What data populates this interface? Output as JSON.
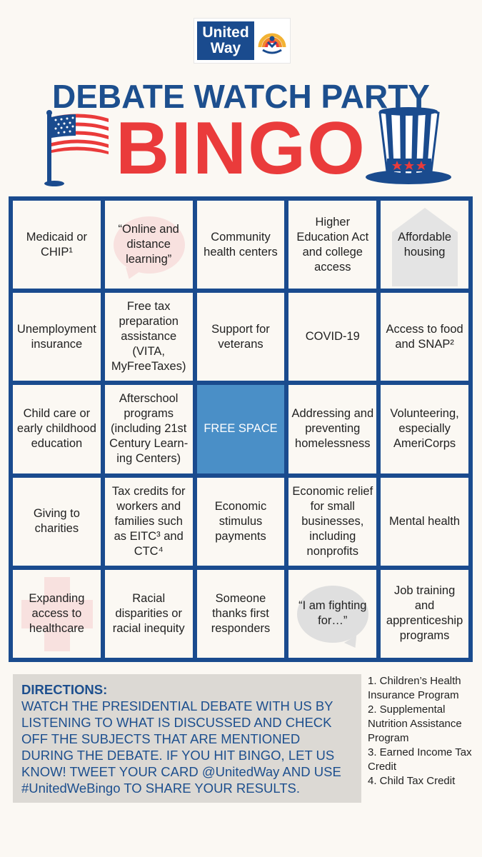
{
  "logo": {
    "line1": "United",
    "line2": "Way"
  },
  "header": {
    "title": "DEBATE WATCH PARTY",
    "bingo": "BINGO"
  },
  "colors": {
    "navy": "#1a4b8e",
    "red": "#ea3b3b",
    "free": "#4a8fc7",
    "background": "#fbf8f3"
  },
  "icons": [
    "us-flag-icon",
    "uncle-sam-hat-icon",
    "speech-bubble-icon",
    "house-icon",
    "red-cross-icon"
  ],
  "cells": [
    "Medicaid or CHIP¹",
    "“Online and distance learning”",
    "Community health centers",
    "Higher Education Act and college access",
    "Affordable housing",
    "Unemployment insurance",
    "Free tax preparation assistance (VITA, MyFreeTaxes)",
    "Support for veterans",
    "COVID-19",
    "Access to food and SNAP²",
    "Child care or early childhood education",
    "Afterschool programs (including 21st Century Learn-ing Centers)",
    "FREE SPACE",
    "Addressing and preventing homelessness",
    "Volunteering, especially AmeriCorps",
    "Giving to charities",
    "Tax credits for workers and families such as EITC³ and CTC⁴",
    "Economic stimulus payments",
    "Economic relief for small businesses, including nonprofits",
    "Mental health",
    "Expanding access to healthcare",
    "Racial disparities or racial inequity",
    "Someone thanks first responders",
    "“I am fighting for…”",
    "Job training and apprenticeship programs"
  ],
  "directions": {
    "heading": "DIRECTIONS:",
    "body": "WATCH THE PRESIDENTIAL DEBATE WITH US BY LISTENING TO WHAT IS DISCUSSED AND CHECK OFF THE SUBJECTS THAT ARE MENTIONED DURING THE DEBATE. IF YOU HIT BINGO, LET US KNOW! TWEET YOUR CARD @UnitedWay AND USE #UnitedWeBingo TO SHARE YOUR RESULTS."
  },
  "footnotes": [
    "1. Children’s Health Insurance Program",
    "2. Supplemental Nutrition Assistance Program",
    "3. Earned Income Tax Credit",
    "4. Child Tax Credit"
  ]
}
